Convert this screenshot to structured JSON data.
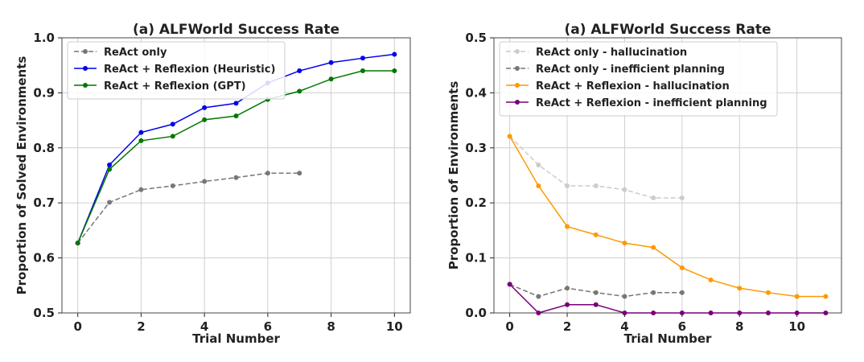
{
  "chart_data": [
    {
      "type": "line",
      "title": "(a) ALFWorld Success Rate",
      "xlabel": "Trial Number",
      "ylabel": "Proportion of Solved Environments",
      "xlim": [
        -0.5,
        10.5
      ],
      "ylim": [
        0.5,
        1.0
      ],
      "xticks": [
        0,
        2,
        4,
        6,
        8,
        10
      ],
      "yticks": [
        0.5,
        0.6,
        0.7,
        0.8,
        0.9,
        1.0
      ],
      "grid": true,
      "legend": "top-left",
      "series": [
        {
          "name": "ReAct only",
          "color": "#777777",
          "dash": true,
          "x": [
            0,
            1,
            2,
            3,
            4,
            5,
            6,
            7
          ],
          "values": [
            0.627,
            0.701,
            0.724,
            0.731,
            0.739,
            0.746,
            0.754,
            0.754
          ]
        },
        {
          "name": "ReAct + Reflexion (Heuristic)",
          "color": "#0000ee",
          "dash": false,
          "x": [
            0,
            1,
            2,
            3,
            4,
            5,
            6,
            7,
            8,
            9,
            10
          ],
          "values": [
            0.627,
            0.769,
            0.828,
            0.843,
            0.873,
            0.881,
            0.918,
            0.94,
            0.955,
            0.963,
            0.97
          ]
        },
        {
          "name": "ReAct + Reflexion (GPT)",
          "color": "#007700",
          "dash": false,
          "x": [
            0,
            1,
            2,
            3,
            4,
            5,
            6,
            7,
            8,
            9,
            10
          ],
          "values": [
            0.627,
            0.761,
            0.813,
            0.821,
            0.851,
            0.858,
            0.888,
            0.903,
            0.925,
            0.94,
            0.94
          ]
        }
      ]
    },
    {
      "type": "line",
      "title": "(a) ALFWorld Success Rate",
      "xlabel": "Trial Number",
      "ylabel": "Proportion of Environments",
      "xlim": [
        -0.55,
        11.55
      ],
      "ylim": [
        0.0,
        0.5
      ],
      "xticks": [
        0,
        2,
        4,
        6,
        8,
        10
      ],
      "yticks": [
        0.0,
        0.1,
        0.2,
        0.3,
        0.4,
        0.5
      ],
      "grid": true,
      "legend": "top-left",
      "series": [
        {
          "name": "ReAct only - hallucination",
          "color": "#cccccc",
          "dash": true,
          "x": [
            0,
            1,
            2,
            3,
            4,
            5,
            6
          ],
          "values": [
            0.321,
            0.269,
            0.231,
            0.231,
            0.224,
            0.209,
            0.209
          ]
        },
        {
          "name": "ReAct only - inefficient planning",
          "color": "#777777",
          "dash": true,
          "x": [
            0,
            1,
            2,
            3,
            4,
            5,
            6
          ],
          "values": [
            0.052,
            0.03,
            0.045,
            0.037,
            0.03,
            0.037,
            0.037
          ]
        },
        {
          "name": "ReAct + Reflexion - hallucination",
          "color": "#ff9900",
          "dash": false,
          "x": [
            0,
            1,
            2,
            3,
            4,
            5,
            6,
            7,
            8,
            9,
            10,
            11
          ],
          "values": [
            0.321,
            0.231,
            0.157,
            0.142,
            0.127,
            0.119,
            0.082,
            0.06,
            0.045,
            0.037,
            0.03,
            0.03
          ]
        },
        {
          "name": "ReAct + Reflexion - inefficient planning",
          "color": "#770077",
          "dash": false,
          "x": [
            0,
            1,
            2,
            3,
            4,
            5,
            6,
            7,
            8,
            9,
            10,
            11
          ],
          "values": [
            0.052,
            0.0,
            0.015,
            0.015,
            0.0,
            0.0,
            0.0,
            0.0,
            0.0,
            0.0,
            0.0,
            0.0
          ]
        }
      ]
    }
  ]
}
